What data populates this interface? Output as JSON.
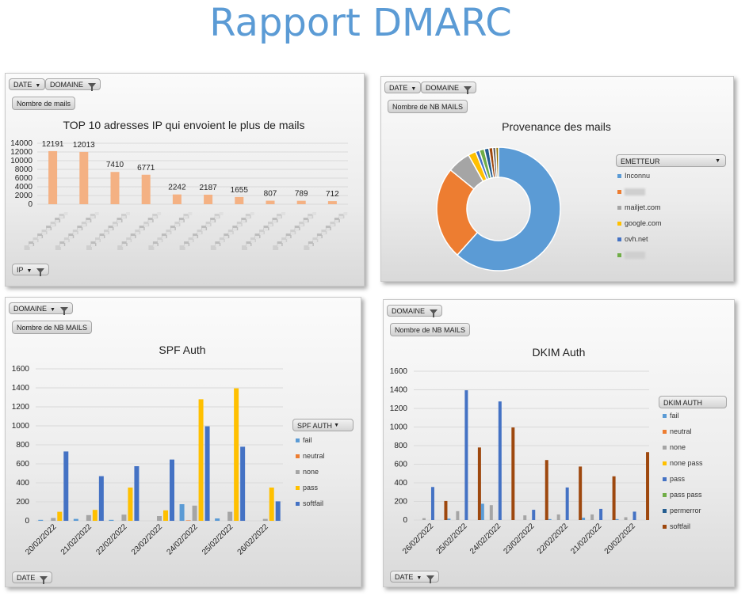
{
  "page_title": "Rapport DMARC",
  "panels": {
    "top_ip": {
      "filter_date": "DATE",
      "filter_domaine": "DOMAINE",
      "value_button": "Nombre de mails",
      "axis_button": "IP"
    },
    "provenance": {
      "filter_date": "DATE",
      "filter_domaine": "DOMAINE",
      "value_button": "Nombre de NB MAILS",
      "legend_header": "EMETTEUR"
    },
    "spf": {
      "filter_domaine": "DOMAINE",
      "value_button": "Nombre de NB MAILS",
      "axis_button": "DATE",
      "legend_header": "SPF AUTH"
    },
    "dkim": {
      "filter_domaine": "DOMAINE",
      "value_button": "Nombre de NB MAILS",
      "axis_button": "DATE",
      "legend_header": "DKIM AUTH"
    }
  },
  "chart_data": [
    {
      "id": "top_ip",
      "type": "bar",
      "title": "TOP 10 adresses IP qui envoient le plus de mails",
      "categories": [
        "",
        "",
        "",
        "",
        "",
        "",
        "",
        "",
        "",
        ""
      ],
      "values": [
        12191,
        12013,
        7410,
        6771,
        2242,
        2187,
        1655,
        807,
        789,
        712
      ],
      "yticks": [
        0,
        2000,
        4000,
        6000,
        8000,
        10000,
        12000,
        14000
      ],
      "ylim": [
        0,
        14000
      ],
      "color": "#f4b183",
      "data_labels": true
    },
    {
      "id": "provenance",
      "type": "pie",
      "donut": true,
      "title": "Provenance des mails",
      "slices": [
        {
          "label": "Inconnu",
          "value": 61,
          "color": "#5b9bd5"
        },
        {
          "label": "",
          "value": 24,
          "color": "#ed7d31"
        },
        {
          "label": "mailjet.com",
          "value": 6,
          "color": "#a5a5a5"
        },
        {
          "label": "google.com",
          "value": 2,
          "color": "#ffc000"
        },
        {
          "label": "ovh.net",
          "value": 1,
          "color": "#4472c4"
        },
        {
          "label": "",
          "value": 1.3,
          "color": "#70ad47"
        },
        {
          "label": "",
          "value": 1.2,
          "color": "#255e91"
        },
        {
          "label": "",
          "value": 1,
          "color": "#9e480e"
        },
        {
          "label": "",
          "value": 0.8,
          "color": "#636363"
        },
        {
          "label": "",
          "value": 0.7,
          "color": "#997300"
        }
      ],
      "legend": [
        {
          "label": "Inconnu",
          "color": "#5b9bd5"
        },
        {
          "label": "",
          "color": "#ed7d31"
        },
        {
          "label": "mailjet.com",
          "color": "#a5a5a5"
        },
        {
          "label": "google.com",
          "color": "#ffc000"
        },
        {
          "label": "ovh.net",
          "color": "#4472c4"
        },
        {
          "label": "",
          "color": "#70ad47"
        }
      ]
    },
    {
      "id": "spf",
      "type": "bar",
      "title": "SPF Auth",
      "categories": [
        "20/02/2022",
        "21/02/2022",
        "22/02/2022",
        "23/02/2022",
        "24/02/2022",
        "25/02/2022",
        "26/02/2022"
      ],
      "series": [
        {
          "name": "fail",
          "color": "#5b9bd5",
          "values": [
            10,
            20,
            10,
            0,
            175,
            25,
            0
          ]
        },
        {
          "name": "neutral",
          "color": "#ed7d31",
          "values": [
            0,
            0,
            0,
            0,
            5,
            0,
            0
          ]
        },
        {
          "name": "none",
          "color": "#a5a5a5",
          "values": [
            30,
            60,
            65,
            50,
            160,
            95,
            20
          ]
        },
        {
          "name": "pass",
          "color": "#ffc000",
          "values": [
            95,
            115,
            350,
            110,
            1280,
            1395,
            350
          ]
        },
        {
          "name": "softfail",
          "color": "#4472c4",
          "values": [
            730,
            470,
            575,
            645,
            995,
            780,
            205
          ]
        }
      ],
      "yticks": [
        0,
        200,
        400,
        600,
        800,
        1000,
        1200,
        1400,
        1600
      ],
      "ylim": [
        0,
        1600
      ]
    },
    {
      "id": "dkim",
      "type": "bar",
      "title": "DKIM Auth",
      "categories": [
        "26/02/2022",
        "25/02/2022",
        "24/02/2022",
        "23/02/2022",
        "22/02/2022",
        "21/02/2022",
        "20/02/2022"
      ],
      "series": [
        {
          "name": "fail",
          "color": "#5b9bd5",
          "values": [
            0,
            15,
            175,
            0,
            10,
            25,
            10
          ]
        },
        {
          "name": "neutral",
          "color": "#ed7d31",
          "values": [
            0,
            0,
            0,
            0,
            0,
            0,
            0
          ]
        },
        {
          "name": "none",
          "color": "#a5a5a5",
          "values": [
            20,
            95,
            160,
            50,
            60,
            60,
            30
          ]
        },
        {
          "name": "none pass",
          "color": "#ffc000",
          "values": [
            0,
            0,
            0,
            0,
            0,
            0,
            0
          ]
        },
        {
          "name": "pass",
          "color": "#4472c4",
          "values": [
            355,
            1395,
            1275,
            110,
            350,
            120,
            90
          ]
        },
        {
          "name": "pass pass",
          "color": "#70ad47",
          "values": [
            0,
            0,
            0,
            0,
            0,
            0,
            0
          ]
        },
        {
          "name": "permerror",
          "color": "#255e91",
          "values": [
            0,
            0,
            0,
            0,
            0,
            0,
            0
          ]
        },
        {
          "name": "softfail",
          "color": "#9e480e",
          "values": [
            205,
            780,
            995,
            645,
            575,
            470,
            730
          ]
        }
      ],
      "yticks": [
        0,
        200,
        400,
        600,
        800,
        1000,
        1200,
        1400,
        1600
      ],
      "ylim": [
        0,
        1600
      ]
    }
  ]
}
